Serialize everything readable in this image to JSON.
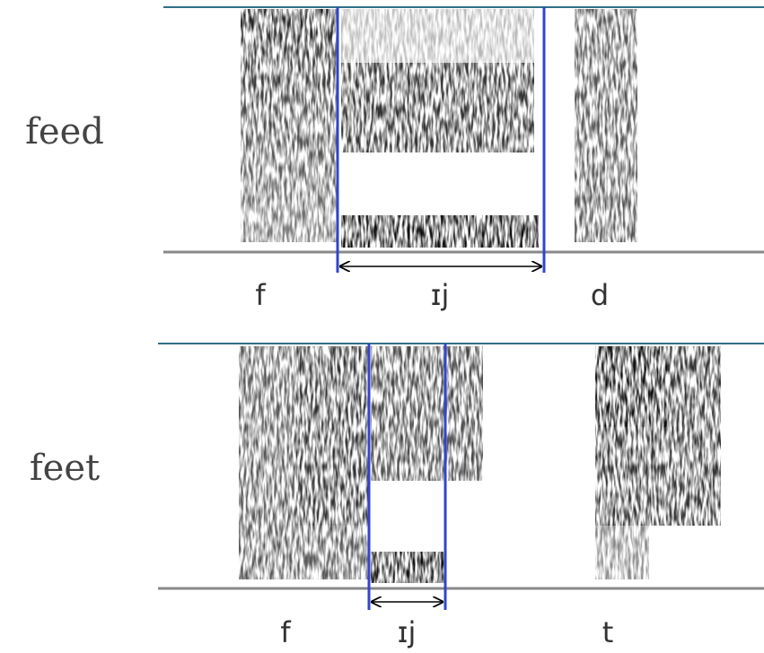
{
  "panels": [
    {
      "word": "feed",
      "segments": [
        "f",
        "ɪj",
        "d"
      ]
    },
    {
      "word": "feet",
      "segments": [
        "f",
        "ɪj",
        "t"
      ]
    }
  ]
}
